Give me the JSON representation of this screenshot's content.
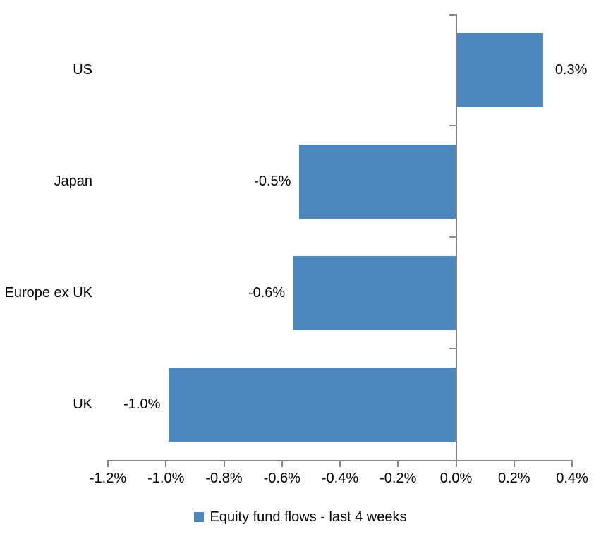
{
  "chart_data": {
    "type": "bar",
    "orientation": "horizontal",
    "title": "",
    "categories": [
      "US",
      "Japan",
      "Europe ex UK",
      "UK"
    ],
    "values": [
      0.3,
      -0.54,
      -0.56,
      -0.99
    ],
    "value_labels": [
      "0.3%",
      "-0.5%",
      "-0.6%",
      "-1.0%"
    ],
    "xlim": [
      -1.2,
      0.4
    ],
    "x_tick_step": 0.2,
    "x_tick_labels": [
      "-1.2%",
      "-1.0%",
      "-0.8%",
      "-0.6%",
      "-0.4%",
      "-0.2%",
      "0.0%",
      "0.2%",
      "0.4%"
    ],
    "grid": false,
    "legend": {
      "label": "Equity fund flows - last 4 weeks",
      "position": "bottom"
    },
    "colors": {
      "bar": "#4D86BD",
      "axis": "#858585",
      "text": "#000000",
      "background": "#FFFFFF"
    }
  }
}
